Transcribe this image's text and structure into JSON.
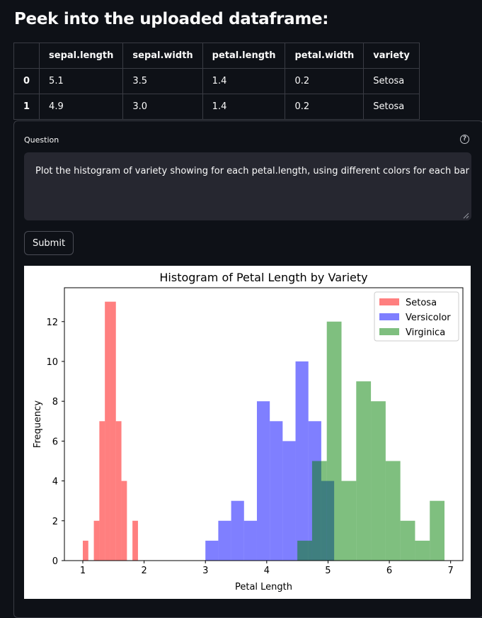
{
  "page": {
    "title": "Peek into the uploaded dataframe:"
  },
  "dataframe": {
    "columns": [
      "",
      "sepal.length",
      "sepal.width",
      "petal.length",
      "petal.width",
      "variety"
    ],
    "rows": [
      [
        "0",
        "5.1",
        "3.5",
        "1.4",
        "0.2",
        "Setosa"
      ],
      [
        "1",
        "4.9",
        "3.0",
        "1.4",
        "0.2",
        "Setosa"
      ]
    ]
  },
  "question": {
    "label": "Question",
    "value": "Plot the histogram of variety showing for each petal.length, using different colors for each bar",
    "help_icon": "question-circle-icon"
  },
  "submit": {
    "label": "Submit"
  },
  "chart_data": {
    "type": "bar",
    "title": "Histogram of Petal Length by Variety",
    "xlabel": "Petal Length",
    "ylabel": "Frequency",
    "xlim": [
      0.7,
      7.2
    ],
    "ylim": [
      0,
      13.7
    ],
    "xticks": [
      1,
      2,
      3,
      4,
      5,
      6,
      7
    ],
    "yticks": [
      0,
      2,
      4,
      6,
      8,
      10,
      12
    ],
    "legend": "top-right",
    "series": [
      {
        "name": "Setosa",
        "color": "#ff0000",
        "opacity": 0.5,
        "bin_start": 1.0,
        "bin_width": 0.09,
        "values": [
          1,
          0,
          2,
          7,
          13,
          13,
          7,
          4,
          0,
          2
        ]
      },
      {
        "name": "Versicolor",
        "color": "#0000ff",
        "opacity": 0.5,
        "bin_start": 3.0,
        "bin_width": 0.21,
        "values": [
          1,
          2,
          3,
          2,
          8,
          7,
          6,
          10,
          7,
          4
        ]
      },
      {
        "name": "Virginica",
        "color": "#008000",
        "opacity": 0.5,
        "bin_start": 4.5,
        "bin_width": 0.24,
        "values": [
          1,
          5,
          12,
          4,
          9,
          8,
          5,
          2,
          1,
          3
        ]
      }
    ]
  }
}
